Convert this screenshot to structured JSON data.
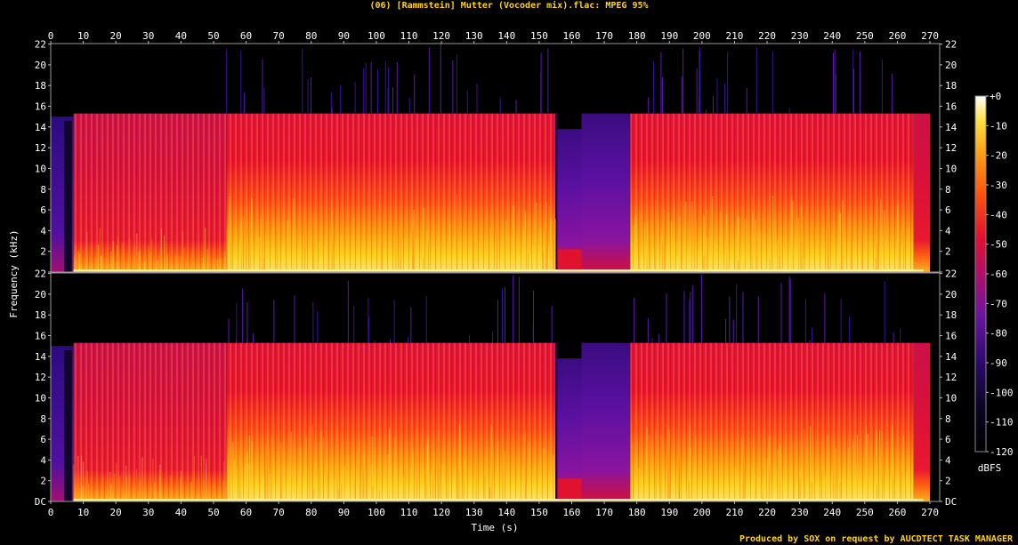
{
  "title": "(06) [Rammstein] Mutter (Vocoder mix).flac: MPEG 95%",
  "credit": "Produced by SOX on request by AUCDTECT TASK MANAGER",
  "chart_data": {
    "type": "heatmap",
    "subtype": "spectrogram",
    "channels": 2,
    "xlabel": "Time (s)",
    "ylabel": "Frequency (kHz)",
    "xlim": [
      0,
      273
    ],
    "ylim": [
      0,
      22.05
    ],
    "x_ticks": [
      0,
      10,
      20,
      30,
      40,
      50,
      60,
      70,
      80,
      90,
      100,
      110,
      120,
      130,
      140,
      150,
      160,
      170,
      180,
      190,
      200,
      210,
      220,
      230,
      240,
      250,
      260,
      270
    ],
    "y_ticks": [
      0,
      2,
      4,
      6,
      8,
      10,
      12,
      14,
      16,
      18,
      20,
      22
    ],
    "y_tick_labels_bottom": [
      "DC",
      "2",
      "4",
      "6",
      "8",
      "10",
      "12",
      "14",
      "16",
      "18",
      "20",
      "22"
    ],
    "y_tick_labels_top": [
      "",
      "2",
      "4",
      "6",
      "8",
      "10",
      "12",
      "14",
      "16",
      "18",
      "20",
      "22"
    ],
    "colorbar": {
      "unit": "dBFS",
      "ticks": [
        "+0",
        "-10",
        "-20",
        "-30",
        "-40",
        "-50",
        "-60",
        "-70",
        "-80",
        "-90",
        "-100",
        "-110",
        "-120"
      ],
      "range": [
        -120,
        0
      ]
    },
    "cutoff_khz": 15.3,
    "segments": [
      {
        "start": 0,
        "end": 7,
        "level": "quiet intro"
      },
      {
        "start": 7,
        "end": 54,
        "level": "moderate"
      },
      {
        "start": 54,
        "end": 155,
        "level": "loud"
      },
      {
        "start": 155,
        "end": 163,
        "level": "break"
      },
      {
        "start": 163,
        "end": 178,
        "level": "quiet"
      },
      {
        "start": 178,
        "end": 265,
        "level": "loud"
      },
      {
        "start": 265,
        "end": 270,
        "level": "fade out"
      }
    ],
    "colors": {
      "low": "#000000",
      "mid1": "#1a0848",
      "mid2": "#6a12a0",
      "mid3": "#d01040",
      "mid4": "#ff6010",
      "high": "#ffd020",
      "max": "#ffffff"
    }
  }
}
